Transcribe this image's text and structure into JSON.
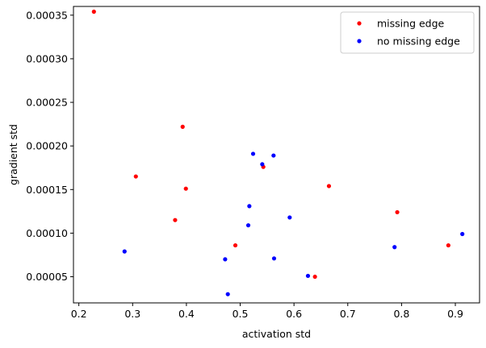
{
  "chart_data": {
    "type": "scatter",
    "title": "",
    "xlabel": "activation std",
    "ylabel": "gradient std",
    "xlim": [
      0.19,
      0.945
    ],
    "ylim": [
      2e-05,
      0.00036
    ],
    "xticks": [
      0.2,
      0.3,
      0.4,
      0.5,
      0.6,
      0.7,
      0.8,
      0.9
    ],
    "xtick_labels": [
      "0.2",
      "0.3",
      "0.4",
      "0.5",
      "0.6",
      "0.7",
      "0.8",
      "0.9"
    ],
    "yticks": [
      5e-05,
      0.0001,
      0.00015,
      0.0002,
      0.00025,
      0.0003,
      0.00035
    ],
    "ytick_labels": [
      "0.00005",
      "0.00010",
      "0.00015",
      "0.00020",
      "0.00025",
      "0.00030",
      "0.00035"
    ],
    "grid": false,
    "legend_position": "top-right",
    "series": [
      {
        "name": "missing edge",
        "color": "#ff0000",
        "points": [
          {
            "x": 0.228,
            "y": 0.000354
          },
          {
            "x": 0.306,
            "y": 0.000165
          },
          {
            "x": 0.379,
            "y": 0.000115
          },
          {
            "x": 0.393,
            "y": 0.000222
          },
          {
            "x": 0.399,
            "y": 0.000151
          },
          {
            "x": 0.491,
            "y": 8.6e-05
          },
          {
            "x": 0.543,
            "y": 0.000176
          },
          {
            "x": 0.639,
            "y": 5e-05
          },
          {
            "x": 0.665,
            "y": 0.000154
          },
          {
            "x": 0.792,
            "y": 0.000124
          },
          {
            "x": 0.887,
            "y": 8.6e-05
          }
        ]
      },
      {
        "name": "no missing edge",
        "color": "#0000ff",
        "points": [
          {
            "x": 0.285,
            "y": 7.9e-05
          },
          {
            "x": 0.472,
            "y": 7e-05
          },
          {
            "x": 0.477,
            "y": 3e-05
          },
          {
            "x": 0.515,
            "y": 0.000109
          },
          {
            "x": 0.517,
            "y": 0.000131
          },
          {
            "x": 0.524,
            "y": 0.000191
          },
          {
            "x": 0.541,
            "y": 0.000179
          },
          {
            "x": 0.562,
            "y": 0.000189
          },
          {
            "x": 0.563,
            "y": 7.1e-05
          },
          {
            "x": 0.592,
            "y": 0.000118
          },
          {
            "x": 0.626,
            "y": 5.1e-05
          },
          {
            "x": 0.787,
            "y": 8.4e-05
          },
          {
            "x": 0.913,
            "y": 9.9e-05
          }
        ]
      }
    ]
  }
}
